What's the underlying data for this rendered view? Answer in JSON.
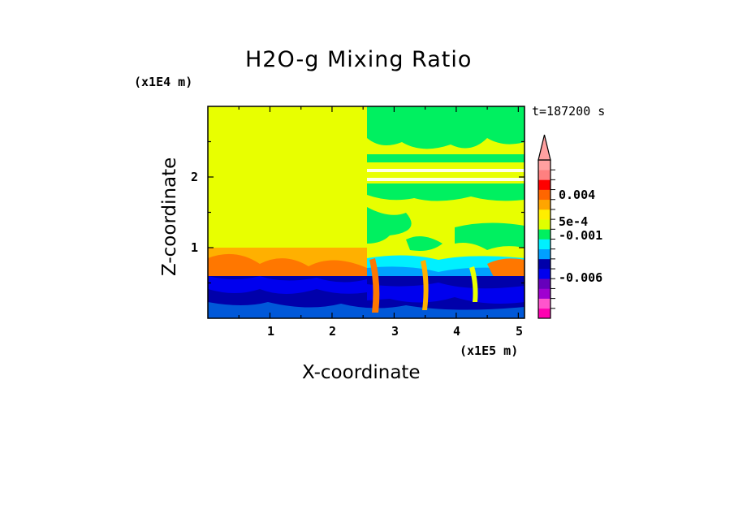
{
  "chart_data": {
    "type": "heatmap",
    "title": "H2O-g Mixing Ratio",
    "xlabel": "X-coordinate",
    "ylabel": "Z-coordinate",
    "x_unit": "(x1E5 m)",
    "y_unit": "(x1E4 m)",
    "time_label": "t=187200 s",
    "xlim": [
      0,
      5.1
    ],
    "ylim": [
      0,
      3.0
    ],
    "x_ticks": [
      1,
      2,
      3,
      4,
      5
    ],
    "x_tick_labels": [
      "1",
      "2",
      "3",
      "4",
      "5"
    ],
    "y_ticks": [
      1,
      2
    ],
    "y_tick_labels": [
      "1",
      "2"
    ],
    "colorbar": {
      "labels": [
        "0.004",
        "5e-4",
        "-0.001",
        "-0.006"
      ],
      "colors": [
        "#ff00b0",
        "#ff55cc",
        "#a000d0",
        "#6600bb",
        "#0000ee",
        "#0000aa",
        "#00a0ff",
        "#00f0ff",
        "#00f060",
        "#e0ff00",
        "#ffee00",
        "#ffa500",
        "#ff6600",
        "#ff0000",
        "#ff8080",
        "#ffa0a0"
      ],
      "extend": "max"
    },
    "regions": [
      {
        "name": "upper-left",
        "x": [
          0,
          2.55
        ],
        "z": [
          1.0,
          3.0
        ],
        "level": "near 0 (yellow)"
      },
      {
        "name": "surface-layer",
        "x": [
          0,
          5.1
        ],
        "z": [
          0,
          0.6
        ],
        "level": "negative (blue)"
      },
      {
        "name": "transition-layer",
        "x": [
          0,
          5.1
        ],
        "z": [
          0.6,
          1.0
        ],
        "level": "positive (orange)"
      },
      {
        "name": "upper-right",
        "x": [
          2.55,
          5.1
        ],
        "z": [
          1.0,
          3.0
        ],
        "level": "mixed yellow/green"
      }
    ]
  }
}
